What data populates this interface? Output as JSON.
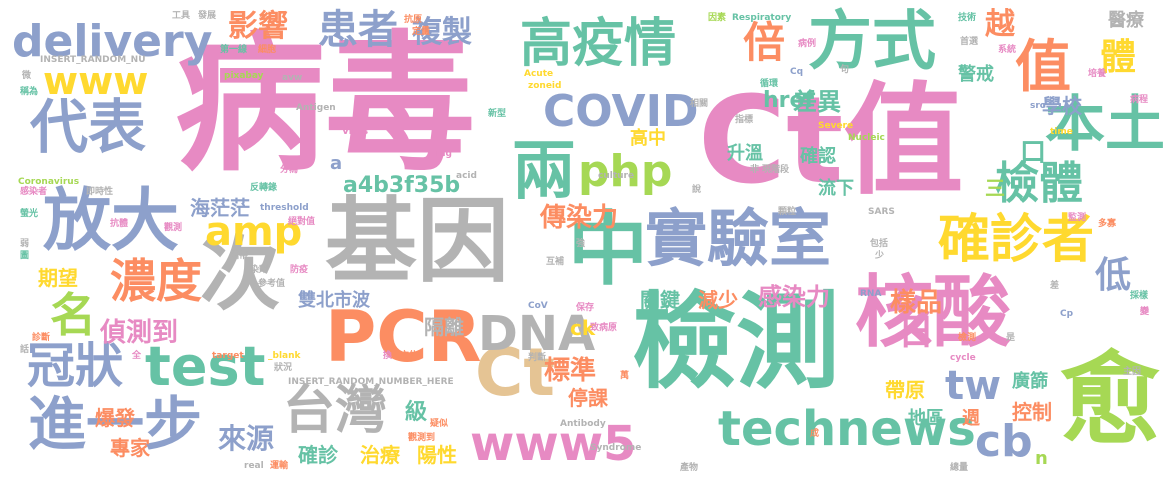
{
  "palette": {
    "pink": "#e78ac3",
    "green": "#66c2a5",
    "orange": "#fc8d62",
    "blue": "#8da0cb",
    "lime": "#a6d854",
    "yellow": "#ffd92f",
    "tan": "#e5c494",
    "gray": "#b3b3b3"
  },
  "words": [
    {
      "text": "病毒",
      "color": "pink"
    },
    {
      "text": "Ct值",
      "color": "pink"
    },
    {
      "text": "基因",
      "color": "gray"
    },
    {
      "text": "檢測",
      "color": "green"
    },
    {
      "text": "核酸",
      "color": "pink"
    },
    {
      "text": "實驗室",
      "color": "blue"
    },
    {
      "text": "中",
      "color": "green"
    },
    {
      "text": "PCR",
      "color": "orange"
    },
    {
      "text": "Ct",
      "color": "tan"
    },
    {
      "text": "高疫情",
      "color": "green"
    },
    {
      "text": "方式",
      "color": "green"
    },
    {
      "text": "放大",
      "color": "blue"
    },
    {
      "text": "代表",
      "color": "blue"
    },
    {
      "text": "次",
      "color": "gray"
    },
    {
      "text": "test",
      "color": "green"
    },
    {
      "text": "DNA",
      "color": "gray"
    },
    {
      "text": "愈",
      "color": "lime"
    },
    {
      "text": "進一步",
      "color": "blue"
    },
    {
      "text": "technews",
      "color": "green"
    },
    {
      "text": "www5",
      "color": "pink"
    },
    {
      "text": "兩",
      "color": "green"
    },
    {
      "text": "COVID",
      "color": "blue"
    },
    {
      "text": "delivery",
      "color": "blue"
    },
    {
      "text": "台灣",
      "color": "gray"
    },
    {
      "text": "確診者",
      "color": "yellow"
    },
    {
      "text": "本土",
      "color": "green"
    },
    {
      "text": "值",
      "color": "orange"
    },
    {
      "text": "濃度",
      "color": "orange"
    },
    {
      "text": "冠狀",
      "color": "blue"
    },
    {
      "text": "www",
      "color": "yellow"
    },
    {
      "text": "amp",
      "color": "yellow"
    },
    {
      "text": "php",
      "color": "lime"
    },
    {
      "text": "名",
      "color": "lime"
    },
    {
      "text": "患者",
      "color": "blue"
    },
    {
      "text": "檢體",
      "color": "green"
    },
    {
      "text": "倍",
      "color": "orange"
    },
    {
      "text": "cb",
      "color": "blue"
    },
    {
      "text": "tw",
      "color": "blue"
    },
    {
      "text": "日",
      "color": "pink"
    },
    {
      "text": "越",
      "color": "orange"
    },
    {
      "text": "體",
      "color": "yellow"
    },
    {
      "text": "低",
      "color": "blue"
    },
    {
      "text": "口",
      "color": "green"
    },
    {
      "text": "複製",
      "color": "blue"
    },
    {
      "text": "影響",
      "color": "orange"
    },
    {
      "text": "傳染力",
      "color": "orange"
    },
    {
      "text": "感染力",
      "color": "pink"
    },
    {
      "text": "偵測到",
      "color": "pink"
    },
    {
      "text": "來源",
      "color": "blue"
    },
    {
      "text": "標準",
      "color": "orange"
    },
    {
      "text": "樣品",
      "color": "orange"
    },
    {
      "text": "差異",
      "color": "green"
    },
    {
      "text": "href",
      "color": "green"
    },
    {
      "text": "海茫茫",
      "color": "blue"
    },
    {
      "text": "a4b3f35b",
      "color": "green"
    },
    {
      "text": "雙北市波",
      "color": "blue"
    },
    {
      "text": "隔離",
      "color": "gray"
    },
    {
      "text": "關鍵",
      "color": "green"
    },
    {
      "text": "減少",
      "color": "orange"
    },
    {
      "text": "期望",
      "color": "yellow"
    },
    {
      "text": "爆發",
      "color": "orange"
    },
    {
      "text": "專家",
      "color": "orange"
    },
    {
      "text": "確診",
      "color": "green"
    },
    {
      "text": "治療",
      "color": "yellow"
    },
    {
      "text": "陽性",
      "color": "yellow"
    },
    {
      "text": "級",
      "color": "green"
    },
    {
      "text": "停課",
      "color": "orange"
    },
    {
      "text": "帶原",
      "color": "yellow"
    },
    {
      "text": "控制",
      "color": "orange"
    },
    {
      "text": "廣篩",
      "color": "green"
    },
    {
      "text": "地區",
      "color": "green"
    },
    {
      "text": "週",
      "color": "orange"
    },
    {
      "text": "學校",
      "color": "blue"
    },
    {
      "text": "警戒",
      "color": "green"
    },
    {
      "text": "醫療",
      "color": "gray"
    },
    {
      "text": "升溫",
      "color": "green"
    },
    {
      "text": "確認",
      "color": "green"
    },
    {
      "text": "流下",
      "color": "green"
    },
    {
      "text": "高中",
      "color": "yellow"
    },
    {
      "text": "三",
      "color": "lime"
    },
    {
      "text": "a",
      "color": "blue"
    },
    {
      "text": "ck",
      "color": "yellow"
    },
    {
      "text": "n",
      "color": "lime"
    },
    {
      "text": "工具",
      "color": "gray"
    },
    {
      "text": "發展",
      "color": "gray"
    },
    {
      "text": "抗原",
      "color": "orange"
    },
    {
      "text": "定量",
      "color": "orange"
    },
    {
      "text": "因素",
      "color": "lime"
    },
    {
      "text": "Respiratory",
      "color": "green"
    },
    {
      "text": "技術",
      "color": "green"
    },
    {
      "text": "首選",
      "color": "gray"
    },
    {
      "text": "第一線",
      "color": "green"
    },
    {
      "text": "細胞",
      "color": "orange"
    },
    {
      "text": "病例",
      "color": "pink"
    },
    {
      "text": "系統",
      "color": "pink"
    },
    {
      "text": "INSERT_RANDOM_NU",
      "color": "gray"
    },
    {
      "text": "Cq",
      "color": "blue"
    },
    {
      "text": "句",
      "color": "gray"
    },
    {
      "text": "培養",
      "color": "pink"
    },
    {
      "text": "微",
      "color": "gray"
    },
    {
      "text": "pixabay",
      "color": "lime"
    },
    {
      "text": "avw",
      "color": "gray"
    },
    {
      "text": "Acute",
      "color": "yellow"
    },
    {
      "text": "zoneid",
      "color": "yellow"
    },
    {
      "text": "循環",
      "color": "green"
    },
    {
      "text": "稱為",
      "color": "green"
    },
    {
      "text": "相關",
      "color": "gray"
    },
    {
      "text": "指標",
      "color": "gray"
    },
    {
      "text": "病程",
      "color": "pink"
    },
    {
      "text": "Antigen",
      "color": "gray"
    },
    {
      "text": "Virus",
      "color": "pink"
    },
    {
      "text": "img",
      "color": "pink"
    },
    {
      "text": "新型",
      "color": "green"
    },
    {
      "text": "Severe",
      "color": "yellow"
    },
    {
      "text": "src",
      "color": "blue"
    },
    {
      "text": "time",
      "color": "yellow"
    },
    {
      "text": "Coronavirus",
      "color": "lime"
    },
    {
      "text": "acid",
      "color": "gray"
    },
    {
      "text": "Nucleic",
      "color": "lime"
    },
    {
      "text": "感染者",
      "color": "pink"
    },
    {
      "text": "即時性",
      "color": "gray"
    },
    {
      "text": "分為",
      "color": "pink"
    },
    {
      "text": "反轉錄",
      "color": "green"
    },
    {
      "text": "culture",
      "color": "gray"
    },
    {
      "text": "非",
      "color": "gray"
    },
    {
      "text": "現階段",
      "color": "gray"
    },
    {
      "text": "說",
      "color": "gray"
    },
    {
      "text": "抗體",
      "color": "pink"
    },
    {
      "text": "螢光",
      "color": "green"
    },
    {
      "text": "threshold",
      "color": "blue"
    },
    {
      "text": "絕對值",
      "color": "pink"
    },
    {
      "text": "觀測",
      "color": "pink"
    },
    {
      "text": "強",
      "color": "gray"
    },
    {
      "text": "顆粒",
      "color": "gray"
    },
    {
      "text": "SARS",
      "color": "gray"
    },
    {
      "text": "監測",
      "color": "pink"
    },
    {
      "text": "多寡",
      "color": "orange"
    },
    {
      "text": "弱",
      "color": "gray"
    },
    {
      "text": "攜帶",
      "color": "gray"
    },
    {
      "text": "圖",
      "color": "green"
    },
    {
      "text": "包括",
      "color": "gray"
    },
    {
      "text": "少",
      "color": "gray"
    },
    {
      "text": "互補",
      "color": "gray"
    },
    {
      "text": "染劑",
      "color": "gray"
    },
    {
      "text": "防疫",
      "color": "pink"
    },
    {
      "text": "參考值",
      "color": "gray"
    },
    {
      "text": "RNA",
      "color": "blue"
    },
    {
      "text": "差",
      "color": "gray"
    },
    {
      "text": "採樣",
      "color": "green"
    },
    {
      "text": "CoV",
      "color": "blue"
    },
    {
      "text": "保存",
      "color": "pink"
    },
    {
      "text": "致病原",
      "color": "pink"
    },
    {
      "text": "Cp",
      "color": "blue"
    },
    {
      "text": "變",
      "color": "pink"
    },
    {
      "text": "診斷",
      "color": "orange"
    },
    {
      "text": "話",
      "color": "gray"
    },
    {
      "text": "檢測",
      "color": "orange"
    },
    {
      "text": "是",
      "color": "gray"
    },
    {
      "text": "全",
      "color": "pink"
    },
    {
      "text": "target",
      "color": "orange"
    },
    {
      "text": "_blank",
      "color": "yellow"
    },
    {
      "text": "換",
      "color": "pink"
    },
    {
      "text": "方信",
      "color": "orange"
    },
    {
      "text": "判斷",
      "color": "gray"
    },
    {
      "text": "cycle",
      "color": "pink"
    },
    {
      "text": "主因",
      "color": "gray"
    },
    {
      "text": "狀況",
      "color": "gray"
    },
    {
      "text": "INSERT_RANDOM_NUMBER_HERE",
      "color": "gray"
    },
    {
      "text": "萬",
      "color": "orange"
    },
    {
      "text": "疑似",
      "color": "orange"
    },
    {
      "text": "Antibody",
      "color": "gray"
    },
    {
      "text": "觀測到",
      "color": "orange"
    },
    {
      "text": "real",
      "color": "gray"
    },
    {
      "text": "運輸",
      "color": "orange"
    },
    {
      "text": "Syndrome",
      "color": "gray"
    },
    {
      "text": "成",
      "color": "orange"
    },
    {
      "text": "產物",
      "color": "gray"
    },
    {
      "text": "總量",
      "color": "gray"
    }
  ]
}
